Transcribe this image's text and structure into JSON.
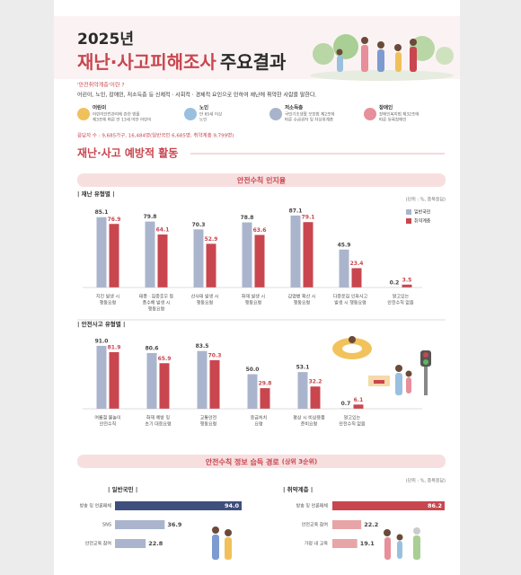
{
  "header": {
    "year": "2025년",
    "title_red": "재난·사고피해조사",
    "title_dark": "주요결과"
  },
  "definition": {
    "term": "'안전취약계층'이란 ?",
    "text": "어린이, 노인, 장애인, 저소득층 등 신체적 · 사회적 · 경제적 요인으로 인하여 재난에 취약한 사람을 말한다."
  },
  "groups": [
    {
      "name": "어린이",
      "lines": [
        "어린이안전관리에 관한 법률",
        "제3조에 따른 만 13세 미만 어린이"
      ]
    },
    {
      "name": "노인",
      "lines": [
        "만 65세 이상",
        "노인"
      ]
    },
    {
      "name": "저소득층",
      "lines": [
        "국민기초생활 보장법 제2조에",
        "따른 수급권자 및 차상위계층"
      ]
    },
    {
      "name": "장애인",
      "lines": [
        "장애인복지법 제32조에",
        "따른 등록장애인"
      ]
    }
  ],
  "sample": "응답자 수 : 9,685가구, 16,484명(일반국민 6,685명, 취약계층 9,799명)",
  "section_title": "재난·사고 예방적 활동",
  "panel1": {
    "title": "안전수칙 인지율"
  },
  "panel2": {
    "title": "안전수칙 정보 습득 경로",
    "highlight": "(상위 3순위)",
    "note": "(단위 : %, 중복응답)"
  },
  "chart_data": [
    {
      "type": "bar",
      "subtitle": "| 재난 유형별 |",
      "note": "(단위 : %, 중복응답)",
      "legend": "top-right",
      "ylim": [
        0,
        100
      ],
      "categories": [
        [
          "지진 발생 시",
          "행동요령"
        ],
        [
          "태풍 · 집중호우 등",
          "풍수해 발생 시",
          "행동요령"
        ],
        [
          "산사태 발생 시",
          "행동요령"
        ],
        [
          "화재 발생 시",
          "행동요령"
        ],
        [
          "감염병 확산 시",
          "행동요령"
        ],
        [
          "다중운집 인파사고",
          "발생 시 행동요령"
        ],
        [
          "알고있는",
          "안전수칙 없음"
        ]
      ],
      "series": [
        {
          "name": "일반국민",
          "color": "#aab5cd",
          "values": [
            85.1,
            79.8,
            70.3,
            78.8,
            87.1,
            45.9,
            0.2
          ]
        },
        {
          "name": "취약계층",
          "color": "#c9464f",
          "values": [
            76.9,
            64.1,
            52.9,
            63.6,
            79.1,
            23.4,
            3.5
          ]
        }
      ]
    },
    {
      "type": "bar",
      "subtitle": "| 안전사고 유형별 |",
      "ylim": [
        0,
        100
      ],
      "categories": [
        [
          "여름철 물놀이",
          "안전수칙"
        ],
        [
          "화재 예방 및",
          "초기 대응요령"
        ],
        [
          "교통안전",
          "행동요령"
        ],
        [
          "응급처치",
          "요령"
        ],
        [
          "평상 시 비상용품",
          "준비요령"
        ],
        [
          "알고있는",
          "안전수칙 없음"
        ]
      ],
      "series": [
        {
          "color": "#aab5cd",
          "values": [
            91,
            80.6,
            83.5,
            50,
            53.1,
            0.7
          ],
          "value_labels": [
            "91.0",
            "80.6",
            "83.5",
            "50.0",
            "53.1",
            "0.7"
          ]
        },
        {
          "color": "#c9464f",
          "values": [
            81.9,
            65.9,
            70.3,
            29.8,
            32.2,
            6.1
          ]
        }
      ]
    },
    {
      "type": "hbar",
      "subtitle": "| 일반국민 |",
      "xlim": [
        0,
        100
      ],
      "categories": [
        "방송 및 언론매체",
        "SNS",
        "안전교육 참여"
      ],
      "values": [
        94,
        36.9,
        22.8
      ],
      "value_labels": [
        "94.0",
        "36.9",
        "22.8"
      ],
      "colors": [
        "#3f4f7d",
        "#aab5cd",
        "#aab5cd"
      ]
    },
    {
      "type": "hbar",
      "subtitle": "| 취약계층 |",
      "xlim": [
        0,
        100
      ],
      "categories": [
        "방송 및 언론매체",
        "안전교육 참여",
        "가정 내 교육"
      ],
      "values": [
        86.2,
        22.2,
        19.1
      ],
      "colors": [
        "#c9464f",
        "#e8a5a8",
        "#e8a5a8"
      ]
    }
  ]
}
